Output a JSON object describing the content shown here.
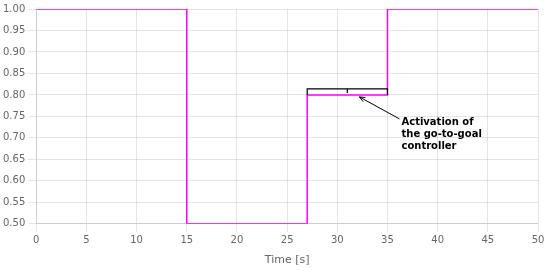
{
  "chart_data": {
    "type": "line",
    "xlabel": "Time [s]",
    "x": [
      0,
      15,
      15,
      27,
      27,
      35,
      35,
      50
    ],
    "values": [
      1.0,
      1.0,
      0.5,
      0.5,
      0.8,
      0.8,
      1.0,
      1.0
    ],
    "color": "#FF00FF",
    "xlim": [
      0,
      50
    ],
    "ylim": [
      0.5,
      1.0
    ],
    "xticks": [
      0,
      5,
      10,
      15,
      20,
      25,
      30,
      35,
      40,
      45,
      50
    ],
    "yticks": [
      {
        "value": 0.5,
        "label": "0.50"
      },
      0.55,
      {
        "value": 0.6,
        "label": "0.60"
      },
      0.65,
      {
        "value": 0.7,
        "label": "0.70"
      },
      0.75,
      {
        "value": 0.8,
        "label": "0.80"
      },
      0.85,
      {
        "value": 0.9,
        "label": "0.90"
      },
      0.95,
      {
        "value": 1.0,
        "label": "1.00"
      }
    ],
    "grid": true,
    "annotations": [
      {
        "text": "Activation of\nthe go-to-goal\ncontroller",
        "x": [
          27,
          35
        ],
        "y": 0.8
      }
    ]
  }
}
